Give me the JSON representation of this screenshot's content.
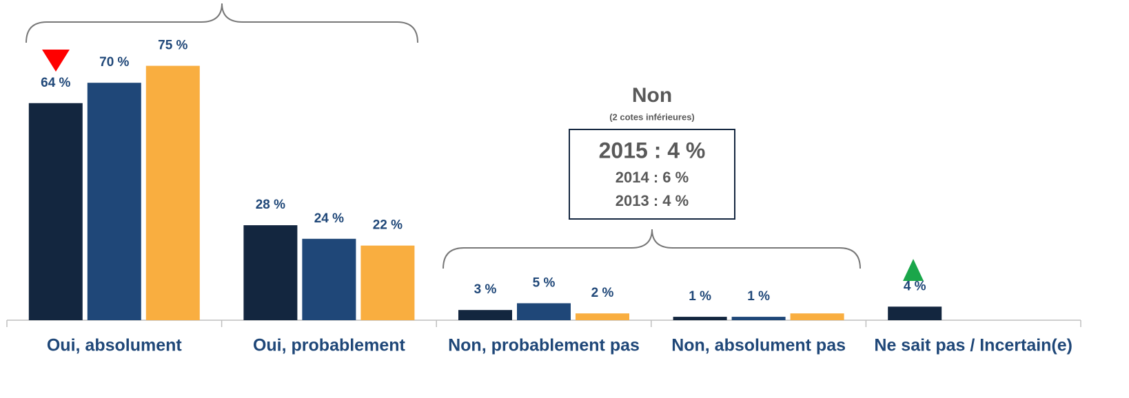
{
  "chart_data": {
    "type": "bar",
    "categories": [
      "Oui, absolument",
      "Oui, probablement",
      "Non, probablement pas",
      "Non, absolument pas",
      "Ne sait pas / Incertain(e)"
    ],
    "series": [
      {
        "color": "#13263f",
        "values": [
          64,
          28,
          3,
          1,
          4
        ],
        "value_labels": [
          "64 %",
          "28 %",
          "3 %",
          "1 %",
          "4 %"
        ]
      },
      {
        "color": "#1f4778",
        "values": [
          70,
          24,
          5,
          1,
          null
        ],
        "value_labels": [
          "70 %",
          "24 %",
          "5 %",
          "1 %",
          null
        ]
      },
      {
        "color": "#f9ae40",
        "values": [
          75,
          22,
          2,
          2,
          null
        ],
        "value_labels": [
          "75 %",
          "22 %",
          "2 %",
          null,
          null
        ]
      }
    ],
    "ylim": [
      0,
      94
    ],
    "annotations": {
      "title": "Non",
      "subtitle": "(2 cotes inférieures)",
      "lines": [
        "2015 : 4 %",
        "2014 : 6 %",
        "2013 : 4 %"
      ]
    }
  }
}
